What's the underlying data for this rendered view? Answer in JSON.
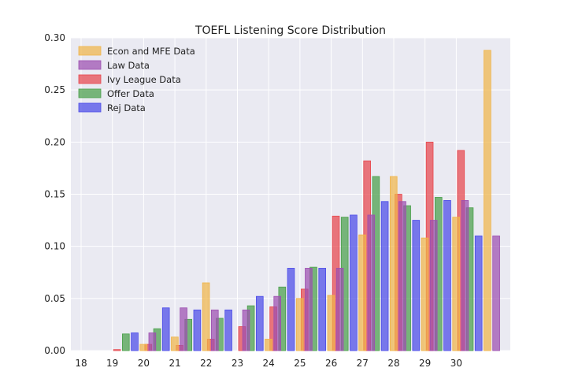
{
  "chart_data": {
    "type": "bar",
    "title": "TOEFL Listening Score Distribution",
    "xlabel": "",
    "ylabel": "",
    "categories": [
      "18",
      "19",
      "20",
      "21",
      "22",
      "23",
      "24",
      "25",
      "26",
      "27",
      "28",
      "29",
      "30"
    ],
    "x_tick_labels": [
      "18",
      "19",
      "20",
      "21",
      "22",
      "23",
      "24",
      "25",
      "26",
      "27",
      "28",
      "29",
      "30"
    ],
    "ylim": [
      0,
      0.3
    ],
    "y_ticks": [
      0.0,
      0.05,
      0.1,
      0.15,
      0.2,
      0.25,
      0.3
    ],
    "y_tick_labels": [
      "0.00",
      "0.05",
      "0.10",
      "0.15",
      "0.20",
      "0.25",
      "0.30"
    ],
    "grid": true,
    "legend_position": "top-left",
    "series": [
      {
        "name": "Ivy League Data",
        "color": "#e8474c",
        "values": [
          0.0,
          0.001,
          0.006,
          0.005,
          0.011,
          0.023,
          0.042,
          0.059,
          0.129,
          0.182,
          0.15,
          0.2,
          0.192
        ]
      },
      {
        "name": "Offer Data",
        "color": "#4aa04a",
        "values": [
          0.0,
          0.016,
          0.021,
          0.03,
          0.031,
          0.043,
          0.061,
          0.08,
          0.128,
          0.167,
          0.139,
          0.147,
          0.137
        ]
      },
      {
        "name": "Rej Data",
        "color": "#4b4be8",
        "values": [
          0.0,
          0.017,
          0.041,
          0.039,
          0.039,
          0.052,
          0.079,
          0.079,
          0.13,
          0.143,
          0.125,
          0.144,
          0.11
        ]
      },
      {
        "name": "Econ and MFE Data",
        "color": "#f0b54a",
        "values": [
          0.0,
          0.006,
          0.013,
          0.065,
          0.0,
          0.011,
          0.05,
          0.053,
          0.111,
          0.167,
          0.108,
          0.128,
          0.288
        ]
      },
      {
        "name": "Law Data",
        "color": "#9d4fb0",
        "values": [
          0.0,
          0.017,
          0.041,
          0.039,
          0.039,
          0.052,
          0.079,
          0.079,
          0.13,
          0.143,
          0.125,
          0.144,
          0.11
        ]
      }
    ],
    "legend_order": [
      "Econ and MFE Data",
      "Law Data",
      "Ivy League Data",
      "Offer Data",
      "Rej Data"
    ]
  }
}
